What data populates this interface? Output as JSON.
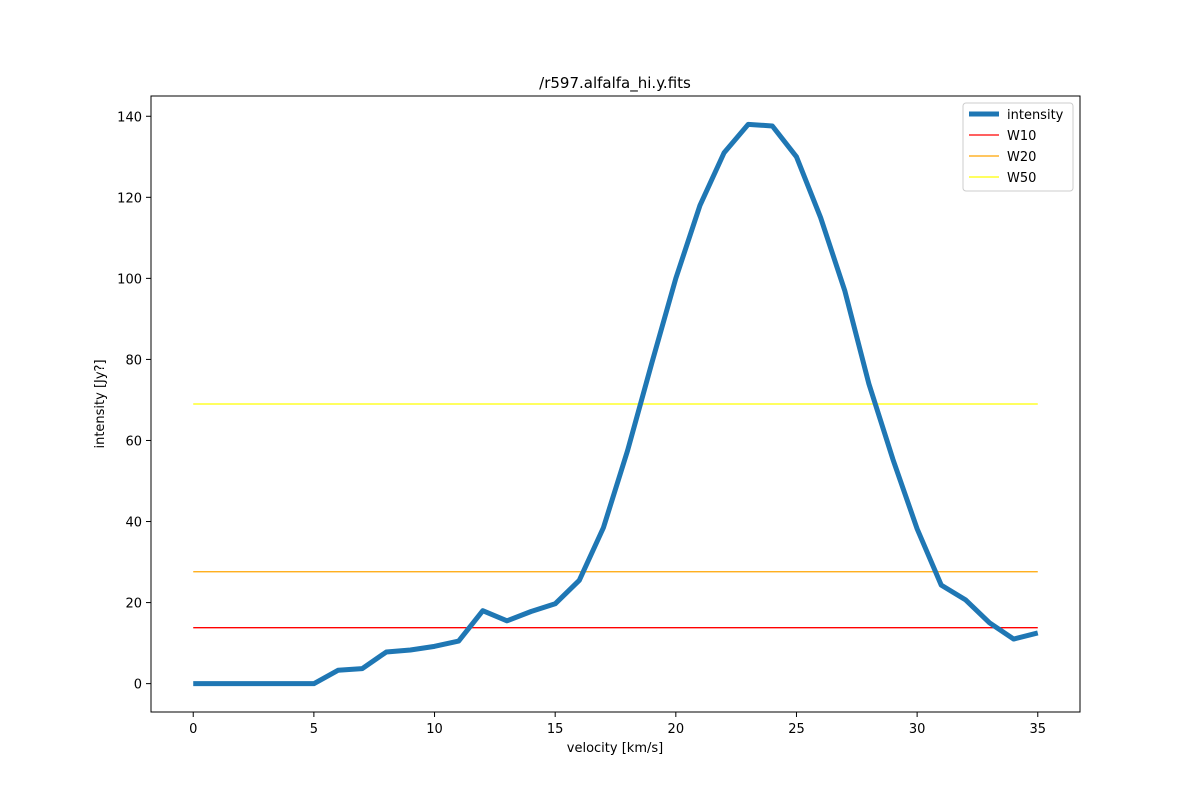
{
  "chart_data": {
    "type": "line",
    "title": "/r597.alfalfa_hi.y.fits",
    "xlabel": "velocity [km/s]",
    "ylabel": "intensity [Jy?]",
    "xlim": [
      -1.75,
      36.75
    ],
    "ylim": [
      -7,
      145
    ],
    "xticks": [
      0,
      5,
      10,
      15,
      20,
      25,
      30,
      35
    ],
    "yticks": [
      0,
      20,
      40,
      60,
      80,
      100,
      120,
      140
    ],
    "grid": false,
    "legend_position": "top-right",
    "series": [
      {
        "name": "intensity",
        "color": "#1f77b4",
        "x": [
          0,
          1,
          2,
          3,
          4,
          5,
          6,
          7,
          8,
          9,
          10,
          11,
          12,
          13,
          14,
          15,
          16,
          17,
          18,
          19,
          20,
          21,
          22,
          23,
          24,
          25,
          26,
          27,
          28,
          29,
          30,
          31,
          32,
          33,
          34,
          35
        ],
        "y": [
          0,
          0,
          0,
          0,
          0,
          0,
          3.3,
          3.7,
          7.8,
          8.3,
          9.2,
          10.5,
          18,
          15.5,
          17.8,
          19.7,
          25.5,
          38.5,
          57.5,
          79,
          100,
          118,
          131,
          138,
          137.6,
          130,
          115,
          97,
          74,
          55.3,
          38.2,
          24.3,
          20.7,
          15,
          11,
          12.5
        ]
      },
      {
        "name": "W10",
        "color": "#ff0000",
        "x": [
          0,
          35
        ],
        "y": [
          13.8,
          13.8
        ]
      },
      {
        "name": "W20",
        "color": "#ffa500",
        "x": [
          0,
          35
        ],
        "y": [
          27.6,
          27.6
        ]
      },
      {
        "name": "W50",
        "color": "#ffff00",
        "x": [
          0,
          35
        ],
        "y": [
          69,
          69
        ]
      }
    ]
  }
}
